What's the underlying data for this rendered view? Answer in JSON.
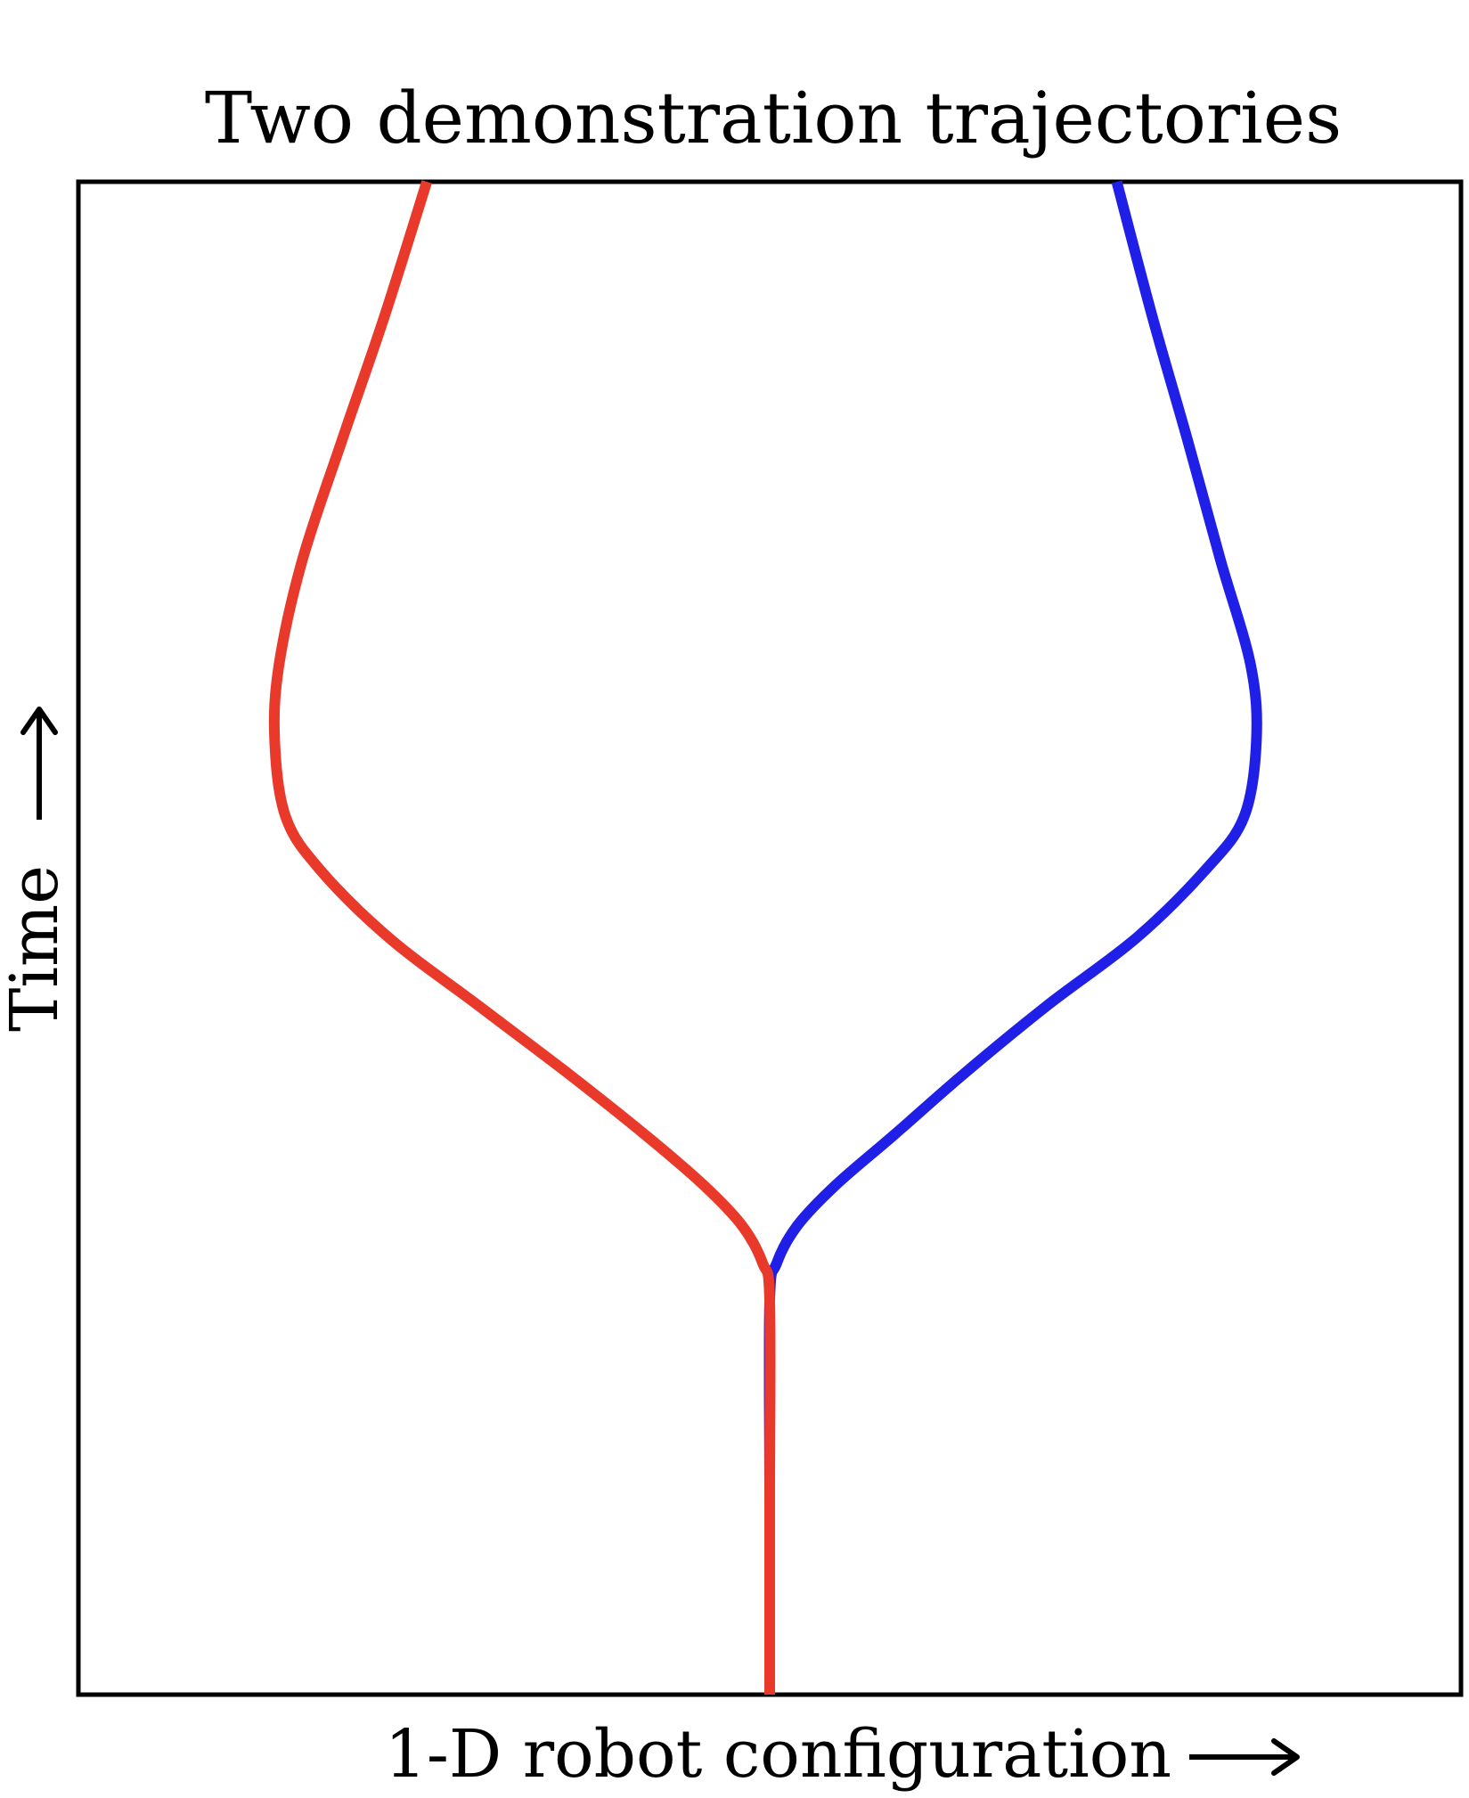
{
  "chart_data": {
    "type": "line",
    "title": "Two demonstration trajectories",
    "xlabel": "1-D robot configuration",
    "ylabel": "Time",
    "xlim": [
      0,
      1
    ],
    "ylim": [
      0,
      1
    ],
    "grid": false,
    "legend": "none",
    "series": [
      {
        "color": "#e8392b",
        "x": [
          0.5,
          0.5,
          0.5,
          0.495,
          0.48,
          0.452,
          0.41,
          0.355,
          0.29,
          0.225,
          0.175,
          0.15,
          0.142,
          0.145,
          0.162,
          0.191,
          0.221,
          0.252
        ],
        "y": [
          0.0,
          0.13,
          0.26,
          0.285,
          0.31,
          0.337,
          0.37,
          0.41,
          0.455,
          0.5,
          0.545,
          0.58,
          0.63,
          0.68,
          0.75,
          0.83,
          0.91,
          1.0
        ]
      },
      {
        "color": "#1f1fe8",
        "x": [
          0.5,
          0.5,
          0.5,
          0.505,
          0.52,
          0.548,
          0.59,
          0.64,
          0.7,
          0.765,
          0.815,
          0.843,
          0.852,
          0.848,
          0.826,
          0.802,
          0.777,
          0.751
        ],
        "y": [
          0.0,
          0.13,
          0.26,
          0.285,
          0.31,
          0.337,
          0.37,
          0.41,
          0.455,
          0.5,
          0.545,
          0.58,
          0.63,
          0.68,
          0.75,
          0.83,
          0.91,
          1.0
        ]
      }
    ]
  }
}
